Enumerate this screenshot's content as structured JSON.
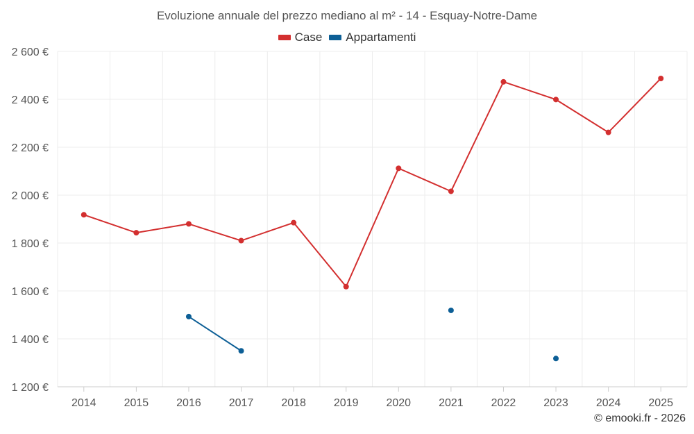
{
  "chart_data": {
    "type": "line",
    "title": "Evoluzione annuale del prezzo mediano al m² - 14 - Esquay-Notre-Dame",
    "categories": [
      "2014",
      "2015",
      "2016",
      "2017",
      "2018",
      "2019",
      "2020",
      "2021",
      "2022",
      "2023",
      "2024",
      "2025"
    ],
    "y_ticks": [
      1200,
      1400,
      1600,
      1800,
      2000,
      2200,
      2400,
      2600
    ],
    "y_tick_labels": [
      "1 200 €",
      "1 400 €",
      "1 600 €",
      "1 800 €",
      "2 000 €",
      "2 200 €",
      "2 400 €",
      "2 600 €"
    ],
    "ylim": [
      1200,
      2600
    ],
    "grid": true,
    "legend_position": "top-center",
    "series": [
      {
        "name": "Case",
        "color": "#d32f2f",
        "values": [
          1918,
          1843,
          1880,
          1810,
          1885,
          1618,
          2112,
          2016,
          2473,
          2399,
          2262,
          2487
        ]
      },
      {
        "name": "Appartamenti",
        "color": "#0d5f96",
        "values": [
          null,
          null,
          1493,
          1350,
          null,
          null,
          null,
          1519,
          null,
          1318,
          null,
          null
        ]
      }
    ]
  },
  "footer": {
    "credit": "© emooki.fr - 2026"
  }
}
